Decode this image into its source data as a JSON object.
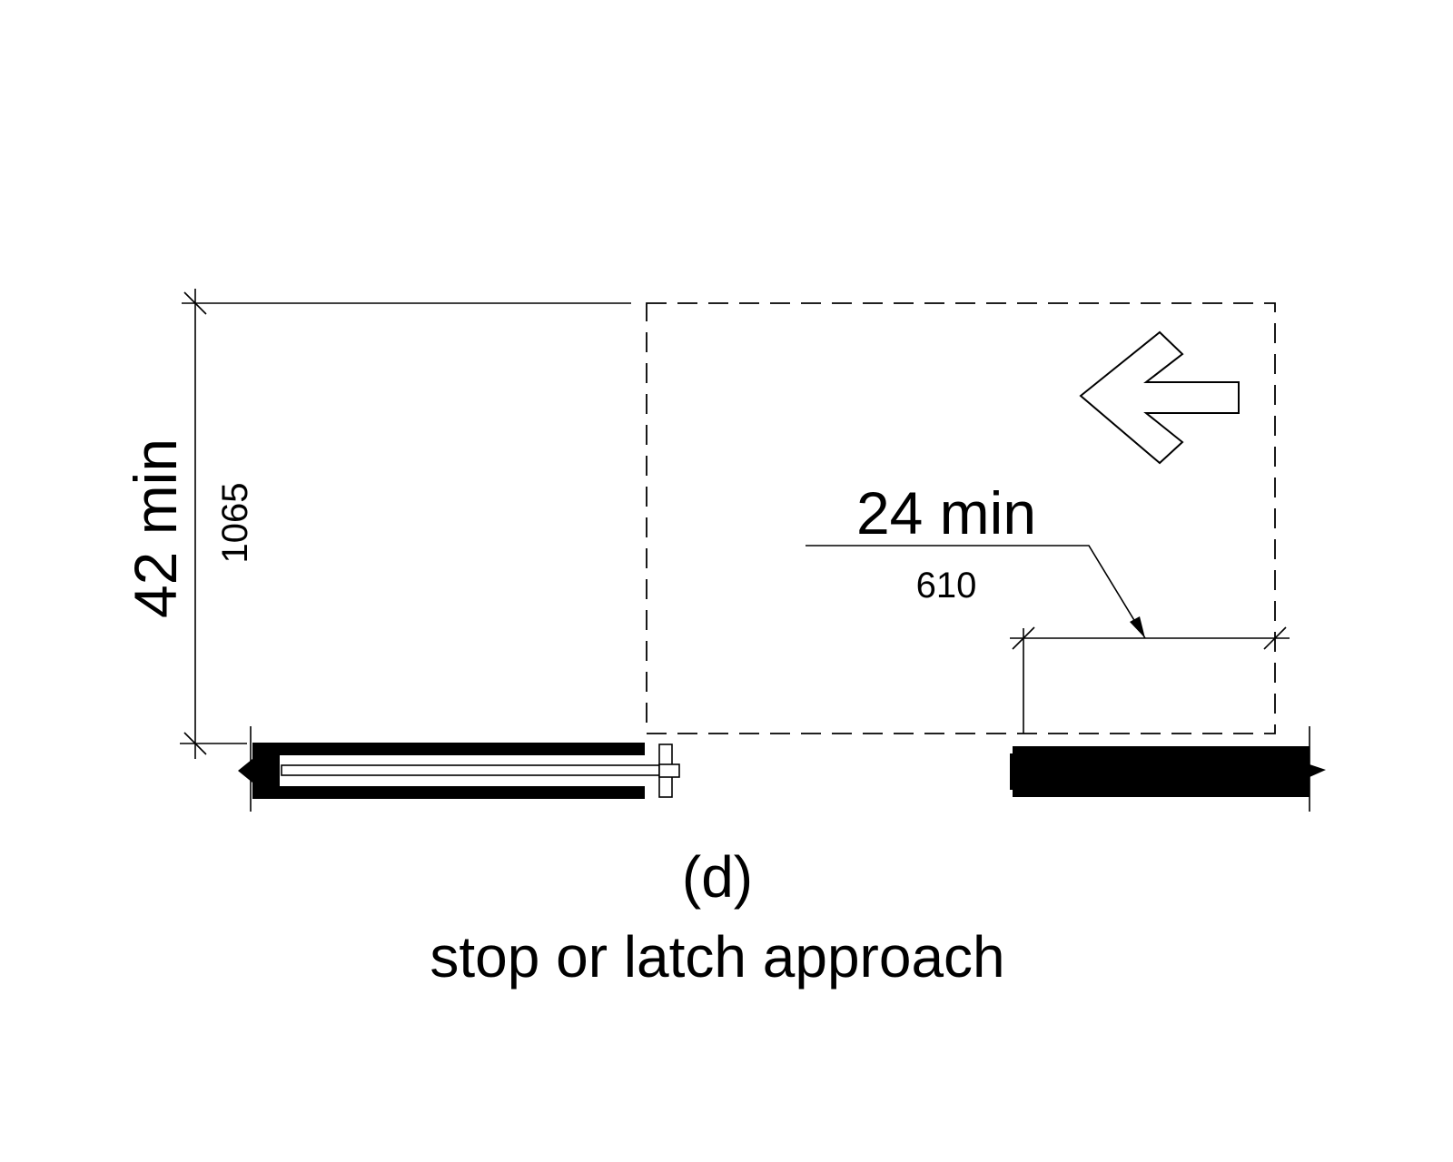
{
  "dimensions": {
    "depth": {
      "value": "42 min",
      "metric": "1065"
    },
    "latch_side": {
      "value": "24 min",
      "metric": "610"
    }
  },
  "caption": {
    "letter": "(d)",
    "title": "stop or latch approach"
  },
  "icons": {
    "approach_arrow": "arrow-left-icon"
  },
  "colors": {
    "line": "#000000",
    "wall": "#000000",
    "background": "#ffffff"
  }
}
